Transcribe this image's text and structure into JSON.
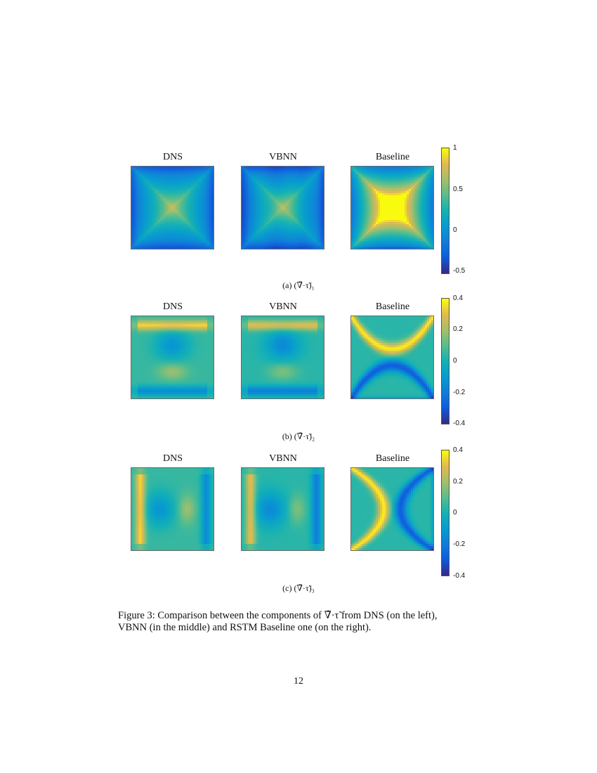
{
  "rows": [
    {
      "titles": [
        "DNS",
        "VBNN",
        "Baseline"
      ],
      "subcaption": "(a) (∇̃·τ̃)₁",
      "colorbar": {
        "min": -0.6,
        "max": 1.0,
        "ticks": [
          "1",
          "0.5",
          "0",
          "-0.5"
        ]
      }
    },
    {
      "titles": [
        "DNS",
        "VBNN",
        "Baseline"
      ],
      "subcaption": "(b) (∇̃·τ̃)₂",
      "colorbar": {
        "min": -0.4,
        "max": 0.4,
        "ticks": [
          "0.4",
          "0.2",
          "0",
          "-0.2",
          "-0.4"
        ]
      }
    },
    {
      "titles": [
        "DNS",
        "VBNN",
        "Baseline"
      ],
      "subcaption": "(c) (∇̃·τ̃)₃",
      "colorbar": {
        "min": -0.4,
        "max": 0.4,
        "ticks": [
          "0.4",
          "0.2",
          "0",
          "-0.2",
          "-0.4"
        ]
      }
    }
  ],
  "colormap": "parula",
  "caption": {
    "line1": "Figure 3: Comparison between the components of ∇̃·τ̃ from DNS (on the left),",
    "line2": "VBNN (in the middle) and RSTM Baseline one (on the right)."
  },
  "page_number": "12"
}
